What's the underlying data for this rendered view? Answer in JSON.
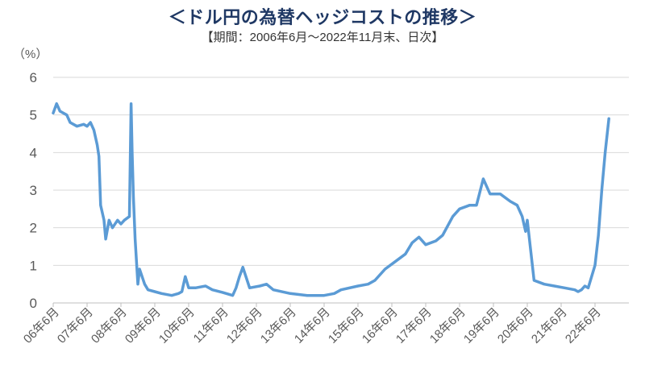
{
  "chart_data": {
    "type": "line",
    "title": "＜ドル円の為替ヘッジコストの推移＞",
    "subtitle": "【期間：2006年6月～2022年11月末、日次】",
    "ylabel": "（%）",
    "xlabel": "",
    "ylim": [
      0,
      6
    ],
    "yticks": [
      "0",
      "1",
      "2",
      "3",
      "4",
      "5",
      "6"
    ],
    "grid": true,
    "legend": "none",
    "line_color": "#5b9bd5",
    "x_tick_labels": [
      "06年6月",
      "07年6月",
      "08年6月",
      "09年6月",
      "10年6月",
      "11年6月",
      "12年6月",
      "13年6月",
      "14年6月",
      "15年6月",
      "16年6月",
      "17年6月",
      "18年6月",
      "19年6月",
      "20年6月",
      "21年6月",
      "22年6月"
    ],
    "series": [
      {
        "x": [
          2006.5,
          2006.6,
          2006.7,
          2006.9,
          2007.0,
          2007.2,
          2007.4,
          2007.5,
          2007.6,
          2007.7,
          2007.8,
          2007.85,
          2007.9,
          2008.0,
          2008.05,
          2008.15,
          2008.25,
          2008.4,
          2008.5,
          2008.6,
          2008.75,
          2008.8,
          2008.83,
          2008.87,
          2008.92,
          2009.0,
          2009.05,
          2009.2,
          2009.3,
          2009.5,
          2009.7,
          2010.0,
          2010.2,
          2010.3,
          2010.4,
          2010.5,
          2010.7,
          2011.0,
          2011.2,
          2011.5,
          2011.8,
          2011.9,
          2012.0,
          2012.1,
          2012.3,
          2012.6,
          2012.8,
          2013.0,
          2013.5,
          2014.0,
          2014.5,
          2014.8,
          2015.0,
          2015.5,
          2015.8,
          2016.0,
          2016.3,
          2016.6,
          2016.9,
          2017.1,
          2017.3,
          2017.5,
          2017.8,
          2018.0,
          2018.3,
          2018.5,
          2018.8,
          2019.0,
          2019.2,
          2019.4,
          2019.7,
          2020.0,
          2020.2,
          2020.35,
          2020.45,
          2020.5,
          2020.7,
          2021.0,
          2021.3,
          2021.6,
          2021.9,
          2022.0,
          2022.1,
          2022.2,
          2022.3,
          2022.5,
          2022.6,
          2022.7,
          2022.8,
          2022.91
        ],
        "values": [
          5.05,
          5.3,
          5.1,
          5.0,
          4.8,
          4.7,
          4.75,
          4.7,
          4.8,
          4.6,
          4.2,
          3.9,
          2.6,
          2.2,
          1.7,
          2.2,
          2.0,
          2.2,
          2.1,
          2.2,
          2.3,
          5.3,
          4.0,
          2.8,
          1.7,
          0.5,
          0.9,
          0.5,
          0.35,
          0.3,
          0.25,
          0.2,
          0.25,
          0.3,
          0.7,
          0.4,
          0.4,
          0.45,
          0.35,
          0.28,
          0.2,
          0.4,
          0.7,
          0.95,
          0.4,
          0.45,
          0.5,
          0.35,
          0.25,
          0.2,
          0.2,
          0.25,
          0.35,
          0.45,
          0.5,
          0.6,
          0.9,
          1.1,
          1.3,
          1.6,
          1.75,
          1.55,
          1.65,
          1.8,
          2.3,
          2.5,
          2.6,
          2.6,
          3.3,
          2.9,
          2.9,
          2.7,
          2.6,
          2.3,
          1.9,
          2.2,
          0.6,
          0.5,
          0.45,
          0.4,
          0.35,
          0.3,
          0.35,
          0.45,
          0.4,
          1.0,
          1.8,
          3.0,
          4.0,
          4.9
        ]
      }
    ]
  }
}
